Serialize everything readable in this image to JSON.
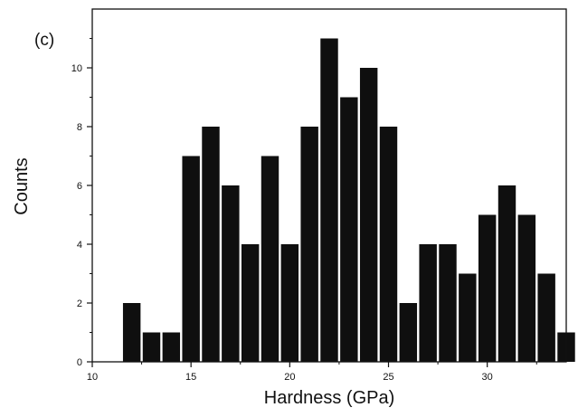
{
  "chart_data": {
    "type": "bar",
    "panel_label": "(c)",
    "title": "",
    "xlabel": "Hardness (GPa)",
    "ylabel": "Counts",
    "xlim": [
      10,
      34
    ],
    "ylim": [
      0,
      12
    ],
    "x_ticks": [
      10,
      15,
      20,
      25,
      30
    ],
    "y_ticks": [
      0,
      2,
      4,
      6,
      8,
      10
    ],
    "bin_width": 1,
    "x": [
      12,
      13,
      14,
      15,
      16,
      17,
      18,
      19,
      20,
      21,
      22,
      23,
      24,
      25,
      26,
      27,
      28,
      29,
      30,
      31,
      32,
      33,
      34
    ],
    "values": [
      2,
      1,
      1,
      7,
      8,
      6,
      4,
      7,
      4,
      8,
      11,
      9,
      10,
      8,
      2,
      4,
      4,
      3,
      5,
      6,
      5,
      3,
      1
    ],
    "grid": false,
    "bar_color": "#0f0f0f"
  }
}
